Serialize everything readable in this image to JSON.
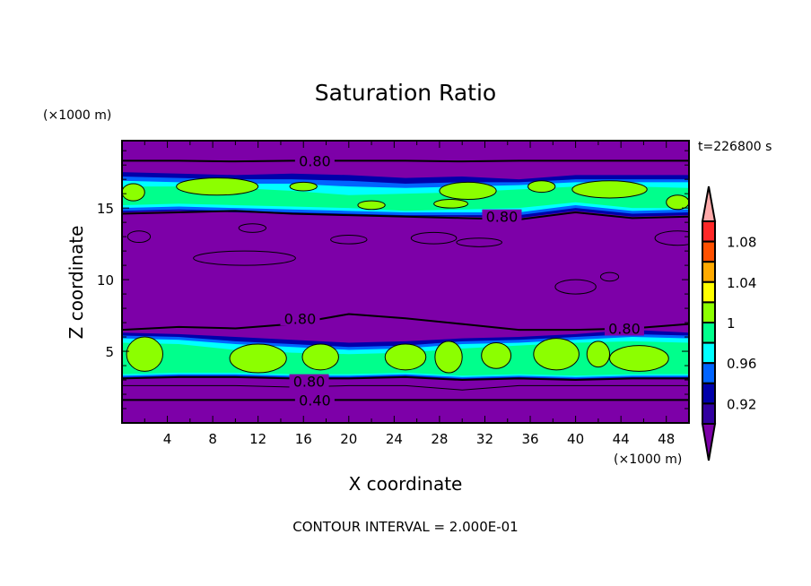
{
  "chart_data": {
    "type": "heatmap",
    "title": "Saturation Ratio",
    "xlabel": "X coordinate",
    "ylabel": "Z coordinate",
    "x_unit_label": "(×1000 m)",
    "y_unit_label": "(×1000 m)",
    "time_label": "t=226800 s",
    "footer": "CONTOUR INTERVAL = 2.000E-01",
    "xlim": [
      0,
      50
    ],
    "ylim": [
      0,
      19.7
    ],
    "x_ticks": [
      4,
      8,
      12,
      16,
      20,
      24,
      28,
      32,
      36,
      40,
      44,
      48
    ],
    "y_ticks": [
      5,
      10,
      15
    ],
    "colorbar": {
      "levels": [
        0.9,
        0.92,
        0.94,
        0.96,
        0.98,
        1.0,
        1.02,
        1.04,
        1.06,
        1.08,
        1.1
      ],
      "labels": [
        "1.08",
        "1.04",
        "1",
        "0.96",
        "0.92"
      ],
      "label_values": [
        1.08,
        1.04,
        1.0,
        0.96,
        0.92
      ],
      "colors_low_to_high": [
        "#3200A0",
        "#0000AA",
        "#0064FF",
        "#00FFFF",
        "#00FF8C",
        "#8CFF00",
        "#FFFF00",
        "#FFAA00",
        "#FF5000",
        "#FF2828"
      ],
      "under_color": "#7D00A8",
      "over_color": "#FFAAAA"
    },
    "contour_labels": [
      {
        "text": "0.80",
        "x": 17.0,
        "z": 18.3
      },
      {
        "text": "0.80",
        "x": 33.5,
        "z": 14.4
      },
      {
        "text": "0.80",
        "x": 15.7,
        "z": 7.3
      },
      {
        "text": "0.80",
        "x": 44.3,
        "z": 6.6
      },
      {
        "text": "0.80",
        "x": 16.5,
        "z": 2.9
      },
      {
        "text": "0.40",
        "x": 17.0,
        "z": 1.6
      }
    ],
    "contour_lines": [
      {
        "level": 0.8,
        "z": [
          18.3,
          18.3,
          18.25,
          18.3,
          18.3,
          18.3,
          18.25,
          18.3,
          18.3,
          18.3,
          18.3
        ]
      },
      {
        "level": 0.8,
        "z": [
          14.6,
          14.7,
          14.8,
          14.6,
          14.5,
          14.4,
          14.3,
          14.2,
          14.7,
          14.3,
          14.4
        ]
      },
      {
        "level": 0.8,
        "z": [
          6.5,
          6.7,
          6.6,
          6.9,
          7.6,
          7.3,
          6.9,
          6.5,
          6.5,
          6.6,
          6.9
        ]
      },
      {
        "level": 0.8,
        "z": [
          3.1,
          3.2,
          3.2,
          3.1,
          3.1,
          3.2,
          3.0,
          3.1,
          3.0,
          3.1,
          3.1
        ]
      },
      {
        "level": 0.6,
        "z": [
          2.6,
          2.6,
          2.6,
          2.5,
          2.6,
          2.6,
          2.3,
          2.6,
          2.6,
          2.6,
          2.6
        ]
      },
      {
        "level": 0.4,
        "z": [
          1.6,
          1.6,
          1.6,
          1.6,
          1.6,
          1.6,
          1.6,
          1.6,
          1.6,
          1.6,
          1.6
        ]
      }
    ]
  }
}
